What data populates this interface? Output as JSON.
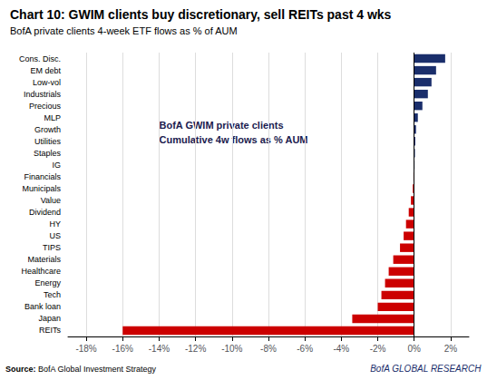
{
  "chart_data": {
    "type": "bar",
    "orientation": "horizontal",
    "title": "Chart 10: GWIM clients buy discretionary, sell REITs past 4 wks",
    "subtitle": "BofA private clients 4-week ETF flows as % of AUM",
    "annotations": [
      "BofA GWIM private clients",
      "Cumulative 4w flows as % AUM"
    ],
    "source_label": "Source:",
    "source": "BofA Global Investment Strategy",
    "branding": "BofA GLOBAL RESEARCH",
    "categories": [
      "Cons. Disc.",
      "EM debt",
      "Low-vol",
      "Industrials",
      "Precious",
      "MLP",
      "Growth",
      "Utilities",
      "Staples",
      "IG",
      "Financials",
      "Municipals",
      "Value",
      "Dividend",
      "HY",
      "US",
      "TIPS",
      "Materials",
      "Healthcare",
      "Energy",
      "Tech",
      "Bank loan",
      "Japan",
      "REITs"
    ],
    "values": [
      1.7,
      1.2,
      0.95,
      0.75,
      0.45,
      0.2,
      0.1,
      0.06,
      0.04,
      0.02,
      -0.04,
      -0.08,
      -0.18,
      -0.3,
      -0.45,
      -0.58,
      -0.78,
      -1.15,
      -1.4,
      -1.6,
      -1.8,
      -2.0,
      -3.4,
      -16.0
    ],
    "colors": [
      "#1a2e6b",
      "#1a2e6b",
      "#1a2e6b",
      "#1a2e6b",
      "#1a2e6b",
      "#1a2e6b",
      "#1a2e6b",
      "#1a2e6b",
      "#1a2e6b",
      "#1a2e6b",
      "#cc0000",
      "#cc0000",
      "#cc0000",
      "#cc0000",
      "#cc0000",
      "#cc0000",
      "#cc0000",
      "#cc0000",
      "#cc0000",
      "#cc0000",
      "#cc0000",
      "#cc0000",
      "#cc0000",
      "#cc0000"
    ],
    "xlim": [
      -19,
      3
    ],
    "xticks": [
      {
        "value": -18,
        "label": "-18%"
      },
      {
        "value": -16,
        "label": "-16%"
      },
      {
        "value": -14,
        "label": "-14%"
      },
      {
        "value": -12,
        "label": "-12%"
      },
      {
        "value": -10,
        "label": "-10%"
      },
      {
        "value": -8,
        "label": "-8%"
      },
      {
        "value": -6,
        "label": "-6%"
      },
      {
        "value": -4,
        "label": "-4%"
      },
      {
        "value": -2,
        "label": "-2%"
      },
      {
        "value": 0,
        "label": "0%"
      },
      {
        "value": 2,
        "label": "2%"
      }
    ],
    "grid": true
  }
}
